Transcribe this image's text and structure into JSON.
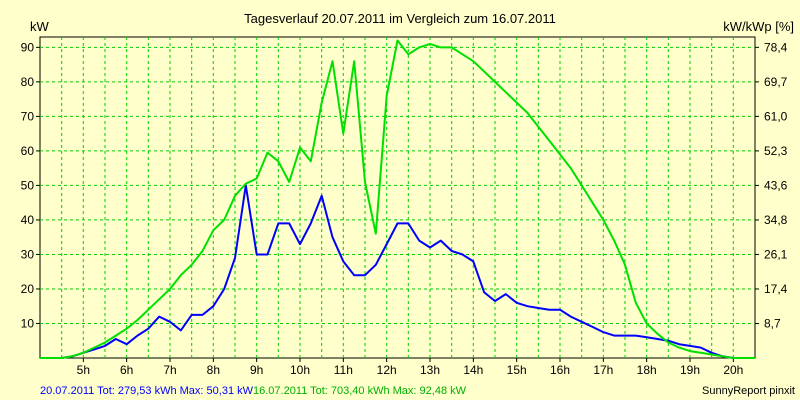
{
  "chart_data": {
    "type": "line",
    "title": "Tagesverlauf 20.07.2011 im Vergleich zum 16.07.2011",
    "ylabel_left": "kW",
    "ylabel_right": "kW/kWp [%]",
    "xlim": [
      4.0,
      20.5
    ],
    "ylim": [
      0,
      93
    ],
    "grid": true,
    "x_ticks": [
      {
        "x": 5,
        "label": "5h"
      },
      {
        "x": 6,
        "label": "6h"
      },
      {
        "x": 7,
        "label": "7h"
      },
      {
        "x": 8,
        "label": "8h"
      },
      {
        "x": 9,
        "label": "9h"
      },
      {
        "x": 10,
        "label": "10h"
      },
      {
        "x": 11,
        "label": "11h"
      },
      {
        "x": 12,
        "label": "12h"
      },
      {
        "x": 13,
        "label": "13h"
      },
      {
        "x": 14,
        "label": "14h"
      },
      {
        "x": 15,
        "label": "15h"
      },
      {
        "x": 16,
        "label": "16h"
      },
      {
        "x": 17,
        "label": "17h"
      },
      {
        "x": 18,
        "label": "18h"
      },
      {
        "x": 19,
        "label": "19h"
      },
      {
        "x": 20,
        "label": "20h"
      }
    ],
    "y_ticks_left": [
      "10",
      "20",
      "30",
      "40",
      "50",
      "60",
      "70",
      "80",
      "90"
    ],
    "y_ticks_left_values": [
      10,
      20,
      30,
      40,
      50,
      60,
      70,
      80,
      90
    ],
    "y_ticks_right": [
      "8,7",
      "17,4",
      "26,1",
      "34,8",
      "43,6",
      "52,3",
      "61,0",
      "69,7",
      "78,4"
    ],
    "series": [
      {
        "name": "20.07.2011",
        "color": "#0000ff",
        "x": [
          4.0,
          4.5,
          4.75,
          5.0,
          5.25,
          5.5,
          5.75,
          6.0,
          6.25,
          6.5,
          6.75,
          7.0,
          7.25,
          7.5,
          7.75,
          8.0,
          8.25,
          8.5,
          8.75,
          9.0,
          9.25,
          9.5,
          9.75,
          10.0,
          10.25,
          10.5,
          10.75,
          11.0,
          11.25,
          11.5,
          11.75,
          12.0,
          12.25,
          12.5,
          12.75,
          13.0,
          13.25,
          13.5,
          13.75,
          14.0,
          14.25,
          14.5,
          14.75,
          15.0,
          15.25,
          15.5,
          15.75,
          16.0,
          16.25,
          16.5,
          16.75,
          17.0,
          17.25,
          17.5,
          17.75,
          18.0,
          18.25,
          18.5,
          18.75,
          19.0,
          19.25,
          19.5,
          19.75,
          20.0,
          20.25,
          20.5
        ],
        "values": [
          0,
          0,
          0.5,
          1.5,
          2.5,
          3.5,
          5.5,
          4,
          6.5,
          8.5,
          12,
          10.5,
          8,
          12.5,
          12.5,
          15,
          20,
          29,
          50,
          30,
          30,
          39,
          39,
          33,
          39,
          47,
          35,
          28,
          24,
          24,
          27,
          33,
          39,
          39,
          34,
          32,
          34,
          31,
          30,
          28,
          19,
          16.5,
          18.5,
          16,
          15,
          14.5,
          14,
          14,
          12,
          10.5,
          9,
          7.5,
          6.5,
          6.5,
          6.5,
          6,
          5.5,
          5,
          4,
          3.5,
          3,
          1.5,
          0.5,
          0,
          0,
          0
        ]
      },
      {
        "name": "16.07.2011",
        "color": "#00e000",
        "x": [
          4.0,
          4.5,
          4.75,
          5.0,
          5.25,
          5.5,
          5.75,
          6.0,
          6.25,
          6.5,
          6.75,
          7.0,
          7.25,
          7.5,
          7.75,
          8.0,
          8.25,
          8.5,
          8.75,
          9.0,
          9.25,
          9.5,
          9.75,
          10.0,
          10.25,
          10.5,
          10.75,
          11.0,
          11.25,
          11.5,
          11.75,
          12.0,
          12.25,
          12.5,
          12.75,
          13.0,
          13.25,
          13.5,
          13.75,
          14.0,
          14.25,
          14.5,
          14.75,
          15.0,
          15.25,
          15.5,
          15.75,
          16.0,
          16.25,
          16.5,
          16.75,
          17.0,
          17.25,
          17.5,
          17.75,
          18.0,
          18.25,
          18.5,
          18.75,
          19.0,
          19.25,
          19.5,
          19.75,
          20.0,
          20.25,
          20.5
        ],
        "values": [
          0,
          0,
          0.5,
          1.5,
          3,
          4.5,
          6.5,
          8.5,
          11,
          14,
          17,
          20,
          24,
          27,
          31,
          37,
          40,
          47,
          50.5,
          52,
          59.5,
          57,
          51,
          61,
          57,
          74,
          86,
          65,
          86,
          51,
          36,
          76,
          92,
          88,
          90,
          91,
          90,
          90,
          88,
          86,
          83,
          80,
          77,
          74,
          71,
          67,
          63,
          59,
          55,
          50,
          45,
          40,
          34,
          27,
          16,
          10,
          7,
          4.5,
          3,
          2,
          1.5,
          1,
          0.5,
          0,
          0,
          0
        ]
      }
    ]
  },
  "footer": {
    "series1_text": "20.07.2011 Tot: 279,53 kWh Max: 50,31 kW",
    "series2_text": "16.07.2011 Tot: 703,40 kWh Max: 92,48 kW",
    "brand": "SunnyReport pinxit"
  }
}
